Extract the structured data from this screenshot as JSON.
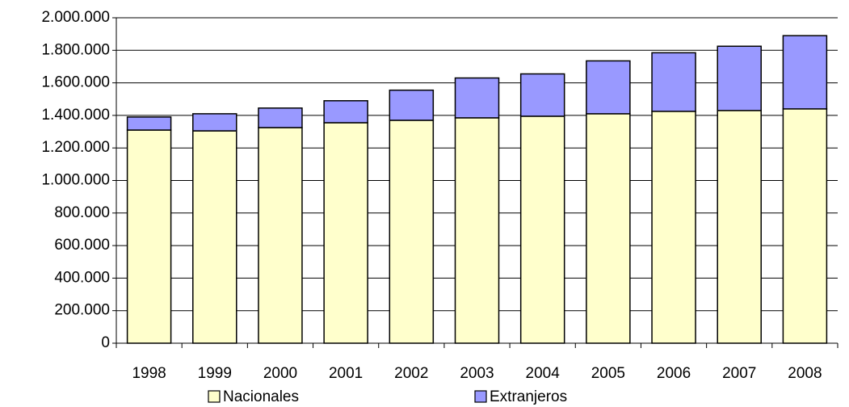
{
  "chart_data": {
    "type": "stacked_bar",
    "categories": [
      "1998",
      "1999",
      "2000",
      "2001",
      "2002",
      "2003",
      "2004",
      "2005",
      "2006",
      "2007",
      "2008"
    ],
    "series": [
      {
        "name": "Nacionales",
        "color": "#ffffcc",
        "values": [
          1310000,
          1305000,
          1325000,
          1355000,
          1370000,
          1385000,
          1395000,
          1410000,
          1425000,
          1430000,
          1440000
        ]
      },
      {
        "name": "Extranjeros",
        "color": "#9999ff",
        "values": [
          80000,
          105000,
          120000,
          135000,
          185000,
          245000,
          260000,
          325000,
          360000,
          395000,
          450000
        ]
      }
    ],
    "ylim": [
      0,
      2000000
    ],
    "yticks": [
      0,
      {
        "value": 200000,
        "label": "200.000"
      },
      {
        "value": 400000,
        "label": "400.000"
      },
      {
        "value": 600000,
        "label": "600.000"
      },
      {
        "value": 800000,
        "label": "800.000"
      },
      {
        "value": 1000000,
        "label": "1.000.000"
      },
      {
        "value": 1200000,
        "label": "1.200.000"
      },
      {
        "value": 1400000,
        "label": "1.400.000"
      },
      {
        "value": 1600000,
        "label": "1.600.000"
      },
      {
        "value": 1800000,
        "label": "1.800.000"
      },
      {
        "value": 2000000,
        "label": "2.000.000"
      }
    ],
    "grid": true
  }
}
